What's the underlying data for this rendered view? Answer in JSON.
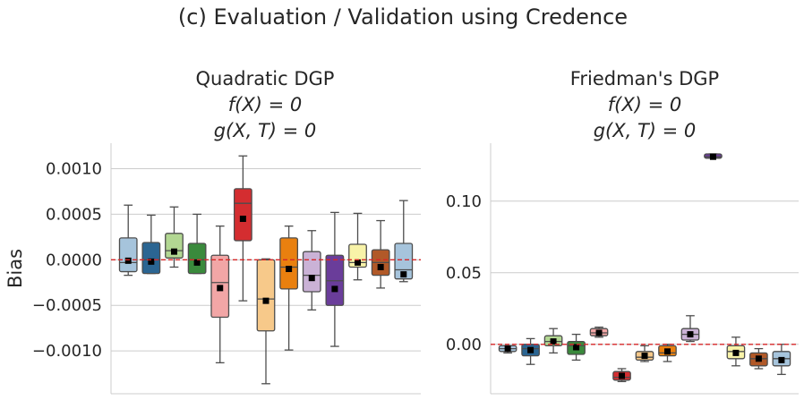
{
  "figure_title": "(c) Evaluation / Validation using Credence",
  "colors": [
    "#a6c4dc",
    "#2b6592",
    "#b2d792",
    "#3a8a3c",
    "#f2a6a6",
    "#d42d30",
    "#f7c98a",
    "#e9800f",
    "#cab2d6",
    "#6a3d9a",
    "#f8f3a8",
    "#b15928",
    "#a6c4dc"
  ],
  "chart_data": [
    {
      "type": "box",
      "title": "Quadratic DGP",
      "subtitle_1": "f(X) = 0",
      "subtitle_2": "g(X, T) = 0",
      "ylabel": "Bias",
      "ylim": [
        -0.00147,
        0.00128
      ],
      "yticks": [
        0.001,
        0.0005,
        0.0,
        -0.0005,
        -0.001
      ],
      "ytick_labels": [
        "0.0010",
        "0.0005",
        "0.0000",
        "−0.0005",
        "−0.0010"
      ],
      "reference_line": 0,
      "boxes": [
        {
          "whislo": -0.00017,
          "q1": -0.00013,
          "med": -3e-05,
          "q3": 0.00024,
          "whishi": 0.0006,
          "mean": -1e-05
        },
        {
          "whislo": -0.00015,
          "q1": -0.00015,
          "med": 0.0,
          "q3": 0.00019,
          "whishi": 0.00049,
          "mean": -2e-05
        },
        {
          "whislo": -8e-05,
          "q1": 2e-05,
          "med": 0.0001,
          "q3": 0.00029,
          "whishi": 0.00058,
          "mean": 9e-05
        },
        {
          "whislo": -0.00015,
          "q1": -0.00015,
          "med": 0.0,
          "q3": 0.00018,
          "whishi": 0.0005,
          "mean": -3e-05
        },
        {
          "whislo": -0.00113,
          "q1": -0.00063,
          "med": -0.00025,
          "q3": 5e-05,
          "whishi": 0.00037,
          "mean": -0.00031
        },
        {
          "whislo": -0.00045,
          "q1": 0.00021,
          "med": 0.00062,
          "q3": 0.00078,
          "whishi": 0.00114,
          "mean": 0.00045
        },
        {
          "whislo": -0.00136,
          "q1": -0.00078,
          "med": -0.00043,
          "q3": 0.0,
          "whishi": 1e-05,
          "mean": -0.00045
        },
        {
          "whislo": -0.00099,
          "q1": -0.00032,
          "med": -8e-05,
          "q3": 0.00024,
          "whishi": 0.00037,
          "mean": -0.0001
        },
        {
          "whislo": -0.00055,
          "q1": -0.00035,
          "med": -0.00017,
          "q3": 9e-05,
          "whishi": 0.00032,
          "mean": -0.0002
        },
        {
          "whislo": -0.00095,
          "q1": -0.0005,
          "med": -0.00023,
          "q3": 5e-05,
          "whishi": 0.00052,
          "mean": -0.00032
        },
        {
          "whislo": -0.00022,
          "q1": -8e-05,
          "med": -3e-05,
          "q3": 0.00017,
          "whishi": 0.00051,
          "mean": -3e-05
        },
        {
          "whislo": -0.00031,
          "q1": -0.00017,
          "med": -3e-05,
          "q3": 0.00011,
          "whishi": 0.00043,
          "mean": -8e-05
        },
        {
          "whislo": -0.00024,
          "q1": -0.00021,
          "med": -0.00011,
          "q3": 0.00018,
          "whishi": 0.00065,
          "mean": -0.00016
        }
      ]
    },
    {
      "type": "box",
      "title": "Friedman's DGP",
      "subtitle_1": "f(X) = 0",
      "subtitle_2": "g(X, T) = 0",
      "ylabel": "",
      "ylim": [
        -0.0345,
        0.1405
      ],
      "yticks": [
        0.1,
        0.05,
        0.0
      ],
      "ytick_labels": [
        "0.10",
        "0.05",
        "0.00"
      ],
      "reference_line": 0,
      "boxes": [
        {
          "whislo": -0.006,
          "q1": -0.005,
          "med": -0.003,
          "q3": -0.001,
          "whishi": -0.001,
          "mean": -0.003
        },
        {
          "whislo": -0.014,
          "q1": -0.008,
          "med": -0.003,
          "q3": 0.0,
          "whishi": 0.004,
          "mean": -0.004
        },
        {
          "whislo": -0.006,
          "q1": -0.001,
          "med": 0.002,
          "q3": 0.006,
          "whishi": 0.011,
          "mean": 0.002
        },
        {
          "whislo": -0.011,
          "q1": -0.007,
          "med": -0.001,
          "q3": 0.002,
          "whishi": 0.007,
          "mean": -0.002
        },
        {
          "whislo": 0.005,
          "q1": 0.006,
          "med": 0.008,
          "q3": 0.011,
          "whishi": 0.012,
          "mean": 0.008
        },
        {
          "whislo": -0.026,
          "q1": -0.025,
          "med": -0.023,
          "q3": -0.019,
          "whishi": -0.017,
          "mean": -0.022
        },
        {
          "whislo": -0.012,
          "q1": -0.011,
          "med": -0.009,
          "q3": -0.005,
          "whishi": -0.001,
          "mean": -0.008
        },
        {
          "whislo": -0.012,
          "q1": -0.008,
          "med": -0.006,
          "q3": -0.001,
          "whishi": 0.0,
          "mean": -0.005
        },
        {
          "whislo": 0.002,
          "q1": 0.003,
          "med": 0.007,
          "q3": 0.011,
          "whishi": 0.02,
          "mean": 0.007
        },
        {
          "whislo": 0.13,
          "q1": 0.13,
          "med": 0.131,
          "q3": 0.133,
          "whishi": 0.133,
          "mean": 0.131
        },
        {
          "whislo": -0.015,
          "q1": -0.01,
          "med": -0.005,
          "q3": -0.001,
          "whishi": 0.005,
          "mean": -0.006
        },
        {
          "whislo": -0.017,
          "q1": -0.015,
          "med": -0.01,
          "q3": -0.006,
          "whishi": -0.003,
          "mean": -0.01
        },
        {
          "whislo": -0.021,
          "q1": -0.015,
          "med": -0.01,
          "q3": -0.005,
          "whishi": 0.0,
          "mean": -0.011
        }
      ]
    }
  ]
}
